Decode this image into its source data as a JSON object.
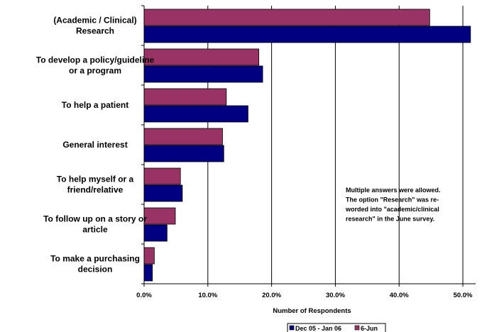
{
  "chart_data": {
    "type": "bar",
    "orientation": "horizontal",
    "categories": [
      [
        "(Academic / Clinical)",
        "Research"
      ],
      [
        "To develop a policy/guideline",
        "or a program"
      ],
      [
        "To help a patient"
      ],
      [
        "General interest"
      ],
      [
        "To help myself or a",
        "friend/relative"
      ],
      [
        "To follow up on a story or",
        "article"
      ],
      [
        "To make a purchasing",
        "decision"
      ]
    ],
    "series": [
      {
        "name": "6-Jun",
        "color": "#993366",
        "values": [
          44.8,
          18.0,
          12.9,
          12.3,
          5.7,
          4.9,
          1.6
        ]
      },
      {
        "name": "Dec 05 - Jan 06",
        "color": "#000080",
        "values": [
          51.2,
          18.6,
          16.3,
          12.5,
          6.0,
          3.6,
          1.3
        ]
      }
    ],
    "xlabel": "Number of Respondents",
    "xlim": [
      0,
      52
    ],
    "xticks": [
      "0.0%",
      "10.0%",
      "20.0%",
      "30.0%",
      "40.0%",
      "50.0%"
    ],
    "xtick_values": [
      0,
      10,
      20,
      30,
      40,
      50
    ],
    "grid": "vertical",
    "annotation": [
      "Multiple answers were allowed.",
      "The option \"Research\" was re-",
      "worded into \"academic/clinical",
      "research\" in the June survey."
    ],
    "legend": {
      "position": "bottom",
      "entries": [
        {
          "label": "Dec 05 - Jan 06",
          "color": "#000080"
        },
        {
          "label": "6-Jun",
          "color": "#993366"
        }
      ]
    }
  }
}
